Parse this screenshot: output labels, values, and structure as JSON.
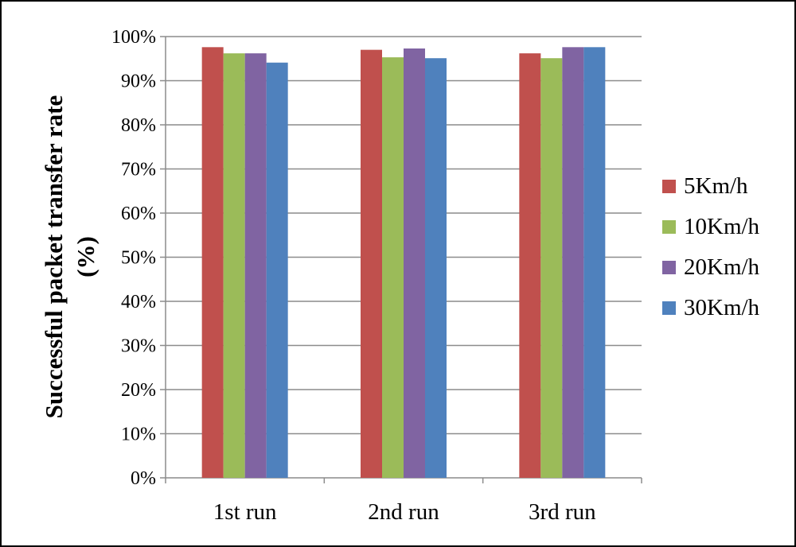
{
  "chart_data": {
    "type": "bar",
    "categories": [
      "1st run",
      "2nd run",
      "3rd run"
    ],
    "series": [
      {
        "name": "5Km/h",
        "color": "#C0504D",
        "values": [
          97.6,
          97.0,
          96.2
        ]
      },
      {
        "name": "10Km/h",
        "color": "#9BBB59",
        "values": [
          96.2,
          95.3,
          95.1
        ]
      },
      {
        "name": "20Km/h",
        "color": "#8064A2",
        "values": [
          96.2,
          97.3,
          97.6
        ]
      },
      {
        "name": "30Km/h",
        "color": "#4F81BD",
        "values": [
          94.1,
          95.1,
          97.6
        ]
      }
    ],
    "title": "",
    "xlabel": "",
    "ylabel": [
      "Successful packet transfer rate",
      "(%)"
    ],
    "ylim": [
      0,
      100
    ],
    "yticks": [
      "0%",
      "10%",
      "20%",
      "30%",
      "40%",
      "50%",
      "60%",
      "70%",
      "80%",
      "90%",
      "100%"
    ],
    "grid": true,
    "legend_position": "right"
  }
}
